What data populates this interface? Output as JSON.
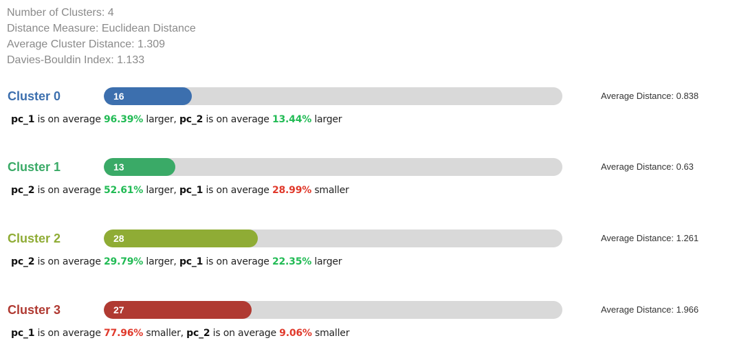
{
  "summary": {
    "num_clusters": "Number of Clusters: 4",
    "distance_measure": "Distance Measure: Euclidean Distance",
    "avg_cluster_distance": "Average Cluster Distance: 1.309",
    "davies_bouldin": "Davies-Bouldin Index: 1.133"
  },
  "clusters": [
    {
      "name": "Cluster 0",
      "count": "16",
      "fill_fraction": 0.192,
      "color": "#3c6fae",
      "avg_distance": "Average Distance: 0.838",
      "desc": [
        {
          "feature": "pc_1",
          "t1": " is on average ",
          "pct": "96.39%",
          "dir": " larger",
          "sep": ", "
        },
        {
          "feature": "pc_2",
          "t1": " is on average ",
          "pct": "13.44%",
          "dir": " larger",
          "sep": ""
        }
      ]
    },
    {
      "name": "Cluster 1",
      "count": "13",
      "fill_fraction": 0.156,
      "color": "#3aaa67",
      "avg_distance": "Average Distance: 0.63",
      "desc": [
        {
          "feature": "pc_2",
          "t1": " is on average ",
          "pct": "52.61%",
          "dir": " larger",
          "sep": ", "
        },
        {
          "feature": "pc_1",
          "t1": " is on average ",
          "pct": "28.99%",
          "dir": " smaller",
          "sep": ""
        }
      ]
    },
    {
      "name": "Cluster 2",
      "count": "28",
      "fill_fraction": 0.336,
      "color": "#8fac35",
      "avg_distance": "Average Distance: 1.261",
      "desc": [
        {
          "feature": "pc_2",
          "t1": " is on average ",
          "pct": "29.79%",
          "dir": " larger",
          "sep": ", "
        },
        {
          "feature": "pc_1",
          "t1": " is on average ",
          "pct": "22.35%",
          "dir": " larger",
          "sep": ""
        }
      ]
    },
    {
      "name": "Cluster 3",
      "count": "27",
      "fill_fraction": 0.322,
      "color": "#b03a32",
      "avg_distance": "Average Distance: 1.966",
      "desc": [
        {
          "feature": "pc_1",
          "t1": " is on average ",
          "pct": "77.96%",
          "dir": " smaller",
          "sep": ", "
        },
        {
          "feature": "pc_2",
          "t1": " is on average ",
          "pct": "9.06%",
          "dir": " smaller",
          "sep": ""
        }
      ]
    }
  ]
}
